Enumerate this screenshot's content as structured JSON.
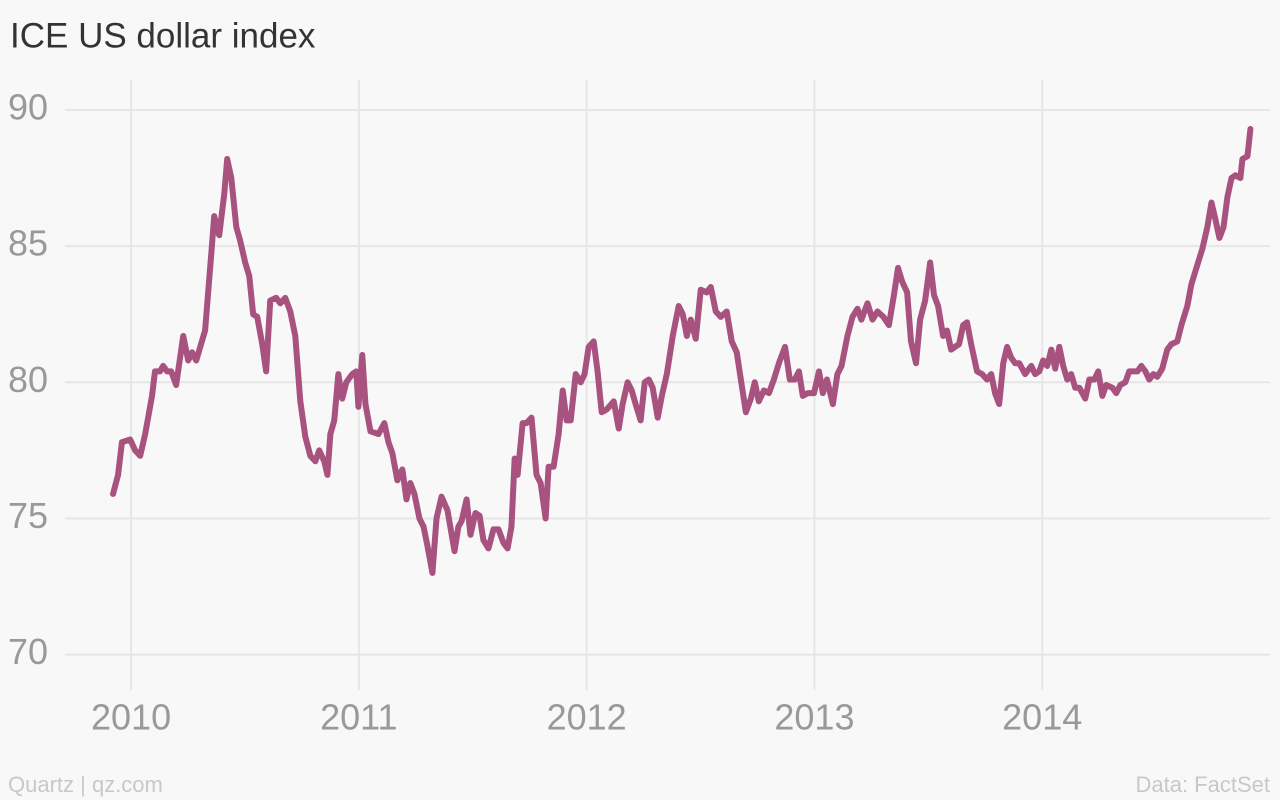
{
  "chart_data": {
    "type": "line",
    "title": "ICE US dollar index",
    "source_left": "Quartz | qz.com",
    "source_right": "Data: FactSet",
    "xlim": [
      2009.71,
      2015.0
    ],
    "xticks": [
      2010,
      2011,
      2012,
      2013,
      2014
    ],
    "ylim": [
      68.7,
      91.1
    ],
    "yticks": [
      70,
      75,
      80,
      85,
      90
    ],
    "grid": true,
    "series": [
      {
        "color": "#a8527f",
        "x": [
          2009.921,
          2009.943,
          2009.96,
          2009.996,
          2010.018,
          2010.04,
          2010.062,
          2010.092,
          2010.105,
          2010.127,
          2010.141,
          2010.158,
          2010.176,
          2010.198,
          2010.229,
          2010.251,
          2010.268,
          2010.286,
          2010.325,
          2010.352,
          2010.365,
          2010.387,
          2010.409,
          2010.422,
          2010.44,
          2010.462,
          2010.479,
          2010.501,
          2010.519,
          2010.536,
          2010.554,
          2010.576,
          2010.593,
          2010.611,
          2010.637,
          2010.655,
          2010.677,
          2010.699,
          2010.721,
          2010.743,
          2010.765,
          2010.787,
          2010.809,
          2010.826,
          2010.848,
          2010.862,
          2010.875,
          2010.892,
          2010.91,
          2010.927,
          2010.945,
          2010.971,
          2010.989,
          2010.998,
          2011.015,
          2011.029,
          2011.051,
          2011.086,
          2011.112,
          2011.13,
          2011.147,
          2011.169,
          2011.191,
          2011.209,
          2011.226,
          2011.244,
          2011.266,
          2011.284,
          2011.301,
          2011.323,
          2011.341,
          2011.363,
          2011.389,
          2011.42,
          2011.437,
          2011.451,
          2011.473,
          2011.49,
          2011.512,
          2011.53,
          2011.547,
          2011.569,
          2011.591,
          2011.613,
          2011.635,
          2011.653,
          2011.67,
          2011.684,
          2011.697,
          2011.719,
          2011.736,
          2011.758,
          2011.78,
          2011.798,
          2011.82,
          2011.833,
          2011.855,
          2011.877,
          2011.895,
          2011.912,
          2011.93,
          2011.952,
          2011.974,
          2011.991,
          2012.009,
          2012.031,
          2012.048,
          2012.066,
          2012.088,
          2012.119,
          2012.141,
          2012.158,
          2012.18,
          2012.198,
          2012.215,
          2012.237,
          2012.255,
          2012.273,
          2012.29,
          2012.312,
          2012.33,
          2012.352,
          2012.378,
          2012.404,
          2012.422,
          2012.44,
          2012.457,
          2012.479,
          2012.501,
          2012.527,
          2012.545,
          2012.567,
          2012.589,
          2012.615,
          2012.637,
          2012.659,
          2012.677,
          2012.699,
          2012.721,
          2012.738,
          2012.756,
          2012.778,
          2012.8,
          2012.822,
          2012.844,
          2012.871,
          2012.892,
          2012.914,
          2012.932,
          2012.949,
          2012.971,
          2012.998,
          2013.02,
          2013.037,
          2013.055,
          2013.081,
          2013.101,
          2013.119,
          2013.145,
          2013.167,
          2013.189,
          2013.206,
          2013.233,
          2013.255,
          2013.277,
          2013.303,
          2013.327,
          2013.349,
          2013.367,
          2013.385,
          2013.407,
          2013.424,
          2013.446,
          2013.464,
          2013.486,
          2013.508,
          2013.525,
          2013.543,
          2013.565,
          2013.582,
          2013.6,
          2013.635,
          2013.653,
          2013.67,
          2013.688,
          2013.714,
          2013.736,
          2013.758,
          2013.776,
          2013.793,
          2013.811,
          2013.829,
          2013.846,
          2013.864,
          2013.881,
          2013.899,
          2013.925,
          2013.952,
          2013.969,
          2013.987,
          2014.004,
          2014.022,
          2014.04,
          2014.057,
          2014.075,
          2014.092,
          2014.11,
          2014.127,
          2014.145,
          2014.163,
          2014.189,
          2014.207,
          2014.229,
          2014.246,
          2014.264,
          2014.281,
          2014.308,
          2014.325,
          2014.343,
          2014.365,
          2014.382,
          2014.418,
          2014.435,
          2014.453,
          2014.47,
          2014.488,
          2014.505,
          2014.527,
          2014.549,
          2014.567,
          2014.593,
          2014.611,
          2014.637,
          2014.655,
          2014.677,
          2014.703,
          2014.725,
          2014.743,
          2014.76,
          2014.778,
          2014.796,
          2014.813,
          2014.831,
          2014.848,
          2014.87,
          2014.879,
          2014.901,
          2014.914
        ],
        "values": [
          75.9,
          76.6,
          77.8,
          77.9,
          77.5,
          77.3,
          78.1,
          79.5,
          80.4,
          80.4,
          80.6,
          80.4,
          80.4,
          79.9,
          81.7,
          80.8,
          81.1,
          80.8,
          81.9,
          84.7,
          86.1,
          85.4,
          86.9,
          88.2,
          87.5,
          85.7,
          85.2,
          84.4,
          83.9,
          82.5,
          82.4,
          81.4,
          80.4,
          83.0,
          83.1,
          82.9,
          83.1,
          82.6,
          81.7,
          79.3,
          78.0,
          77.3,
          77.1,
          77.5,
          77.1,
          76.6,
          78.1,
          78.6,
          80.3,
          79.4,
          80.0,
          80.3,
          80.4,
          79.1,
          81.0,
          79.2,
          78.2,
          78.1,
          78.5,
          77.8,
          77.4,
          76.4,
          76.8,
          75.7,
          76.3,
          75.9,
          75.0,
          74.7,
          74.0,
          73.0,
          75.0,
          75.8,
          75.3,
          73.8,
          74.7,
          74.9,
          75.7,
          74.4,
          75.2,
          75.1,
          74.2,
          73.9,
          74.6,
          74.6,
          74.1,
          73.9,
          74.7,
          77.2,
          76.6,
          78.5,
          78.5,
          78.7,
          76.6,
          76.3,
          75.0,
          76.9,
          76.9,
          78.1,
          79.7,
          78.6,
          78.6,
          80.3,
          80.0,
          80.3,
          81.3,
          81.5,
          80.4,
          78.9,
          79.0,
          79.3,
          78.3,
          79.2,
          80.0,
          79.7,
          79.2,
          78.6,
          80.0,
          80.1,
          79.8,
          78.7,
          79.5,
          80.3,
          81.7,
          82.8,
          82.5,
          81.7,
          82.3,
          81.6,
          83.4,
          83.3,
          83.5,
          82.6,
          82.4,
          82.6,
          81.5,
          81.1,
          80.1,
          78.9,
          79.4,
          80.0,
          79.3,
          79.7,
          79.6,
          80.1,
          80.7,
          81.3,
          80.1,
          80.1,
          80.4,
          79.5,
          79.6,
          79.6,
          80.4,
          79.6,
          80.1,
          79.2,
          80.3,
          80.6,
          81.7,
          82.4,
          82.7,
          82.3,
          82.9,
          82.3,
          82.6,
          82.4,
          82.1,
          83.2,
          84.2,
          83.7,
          83.3,
          81.5,
          80.7,
          82.3,
          83.0,
          84.4,
          83.2,
          82.8,
          81.7,
          81.9,
          81.2,
          81.4,
          82.1,
          82.2,
          81.4,
          80.4,
          80.3,
          80.1,
          80.3,
          79.6,
          79.2,
          80.7,
          81.3,
          80.9,
          80.7,
          80.7,
          80.3,
          80.6,
          80.3,
          80.4,
          80.8,
          80.6,
          81.2,
          80.5,
          81.3,
          80.6,
          80.1,
          80.3,
          79.8,
          79.8,
          79.4,
          80.1,
          80.1,
          80.4,
          79.5,
          79.9,
          79.8,
          79.6,
          79.9,
          80.0,
          80.4,
          80.4,
          80.6,
          80.4,
          80.1,
          80.3,
          80.2,
          80.5,
          81.2,
          81.4,
          81.5,
          82.1,
          82.8,
          83.6,
          84.2,
          84.9,
          85.7,
          86.6,
          86.0,
          85.3,
          85.7,
          86.8,
          87.5,
          87.6,
          87.5,
          88.2,
          88.3,
          89.3
        ]
      }
    ]
  }
}
